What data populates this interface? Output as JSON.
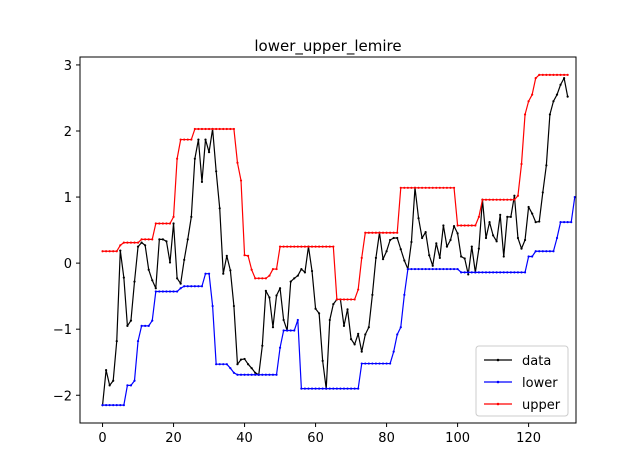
{
  "chart_data": {
    "type": "line",
    "title": "lower_upper_lemire",
    "xlabel": "",
    "ylabel": "",
    "xlim": [
      -6.35,
      133.35
    ],
    "ylim": [
      -2.42,
      3.12
    ],
    "xticks": [
      0,
      20,
      40,
      60,
      80,
      100,
      120
    ],
    "yticks": [
      -2,
      -1,
      0,
      1,
      2,
      3
    ],
    "xtick_labels": [
      "0",
      "20",
      "40",
      "60",
      "80",
      "100",
      "120"
    ],
    "ytick_labels": [
      "−2",
      "−1",
      "0",
      "1",
      "2",
      "3"
    ],
    "grid": false,
    "legend_position": "lower right",
    "series": [
      {
        "name": "data",
        "color": "#000000",
        "values": [
          -2.15,
          -1.62,
          -1.85,
          -1.78,
          -1.18,
          0.19,
          -0.22,
          -0.95,
          -0.87,
          -0.28,
          0.25,
          0.31,
          0.27,
          -0.1,
          -0.26,
          -0.38,
          0.36,
          0.36,
          0.33,
          0.01,
          0.6,
          -0.23,
          -0.31,
          0.05,
          0.36,
          0.7,
          1.58,
          1.87,
          1.23,
          1.87,
          1.68,
          2.03,
          1.39,
          0.83,
          -0.16,
          0.11,
          -0.11,
          -0.65,
          -1.53,
          -1.46,
          -1.45,
          -1.53,
          -1.59,
          -1.66,
          -1.69,
          -1.25,
          -0.42,
          -0.52,
          -0.97,
          -0.49,
          -0.38,
          -0.86,
          -1.02,
          -0.28,
          -0.23,
          -0.19,
          -0.09,
          -0.14,
          0.25,
          -0.12,
          -0.69,
          -0.76,
          -1.48,
          -1.9,
          -0.86,
          -0.62,
          -0.55,
          -0.55,
          -0.95,
          -0.7,
          -1.15,
          -1.23,
          -1.07,
          -1.34,
          -1.08,
          -0.97,
          -0.48,
          0.08,
          0.46,
          0.06,
          0.18,
          0.35,
          0.38,
          0.38,
          0.21,
          0.04,
          -0.09,
          0.32,
          1.14,
          0.68,
          0.38,
          0.47,
          0.12,
          -0.04,
          0.3,
          0.08,
          0.57,
          0.25,
          0.35,
          0.56,
          0.45,
          0.1,
          0.07,
          -0.17,
          0.25,
          -0.14,
          0.22,
          0.96,
          0.38,
          0.62,
          0.42,
          0.33,
          0.73,
          0.1,
          0.7,
          0.7,
          1.02,
          0.38,
          0.22,
          0.35,
          0.85,
          0.75,
          0.62,
          0.63,
          1.07,
          1.48,
          2.25,
          2.45,
          2.55,
          2.7,
          2.8,
          2.52
        ]
      },
      {
        "name": "lower",
        "color": "#0000ff",
        "values": [
          -2.15,
          -2.15,
          -2.15,
          -2.15,
          -2.15,
          -2.15,
          -2.15,
          -1.85,
          -1.85,
          -1.78,
          -1.18,
          -0.95,
          -0.95,
          -0.95,
          -0.87,
          -0.43,
          -0.43,
          -0.43,
          -0.43,
          -0.43,
          -0.43,
          -0.43,
          -0.38,
          -0.35,
          -0.35,
          -0.35,
          -0.35,
          -0.35,
          -0.35,
          -0.16,
          -0.16,
          -0.65,
          -1.53,
          -1.53,
          -1.53,
          -1.53,
          -1.59,
          -1.66,
          -1.69,
          -1.69,
          -1.69,
          -1.69,
          -1.69,
          -1.69,
          -1.69,
          -1.69,
          -1.69,
          -1.69,
          -1.69,
          -1.69,
          -1.28,
          -1.02,
          -1.02,
          -1.02,
          -1.02,
          -0.86,
          -1.9,
          -1.9,
          -1.9,
          -1.9,
          -1.9,
          -1.9,
          -1.9,
          -1.9,
          -1.9,
          -1.9,
          -1.9,
          -1.9,
          -1.9,
          -1.9,
          -1.9,
          -1.9,
          -1.9,
          -1.52,
          -1.52,
          -1.52,
          -1.52,
          -1.52,
          -1.52,
          -1.52,
          -1.52,
          -1.52,
          -1.34,
          -1.08,
          -0.97,
          -0.48,
          -0.09,
          -0.09,
          -0.09,
          -0.09,
          -0.09,
          -0.09,
          -0.09,
          -0.09,
          -0.09,
          -0.09,
          -0.09,
          -0.09,
          -0.09,
          -0.09,
          -0.09,
          -0.14,
          -0.14,
          -0.14,
          -0.14,
          -0.14,
          -0.14,
          -0.14,
          -0.14,
          -0.14,
          -0.14,
          -0.14,
          -0.14,
          -0.14,
          -0.14,
          -0.14,
          -0.14,
          -0.14,
          -0.14,
          -0.14,
          0.1,
          0.1,
          0.18,
          0.18,
          0.18,
          0.18,
          0.18,
          0.18,
          0.38,
          0.62,
          0.62,
          0.62,
          0.62,
          1.0
        ]
      },
      {
        "name": "upper",
        "color": "#ff0000",
        "values": [
          0.18,
          0.18,
          0.18,
          0.18,
          0.18,
          0.27,
          0.31,
          0.31,
          0.31,
          0.31,
          0.31,
          0.36,
          0.36,
          0.36,
          0.36,
          0.6,
          0.6,
          0.6,
          0.6,
          0.6,
          0.7,
          1.58,
          1.87,
          1.87,
          1.87,
          1.87,
          2.03,
          2.03,
          2.03,
          2.03,
          2.03,
          2.03,
          2.03,
          2.03,
          2.03,
          2.03,
          2.03,
          2.03,
          1.52,
          1.25,
          0.12,
          0.11,
          -0.1,
          -0.23,
          -0.23,
          -0.23,
          -0.23,
          -0.19,
          -0.09,
          -0.09,
          0.25,
          0.25,
          0.25,
          0.25,
          0.25,
          0.25,
          0.25,
          0.25,
          0.25,
          0.25,
          0.25,
          0.25,
          0.25,
          0.25,
          0.25,
          0.25,
          -0.55,
          -0.55,
          -0.55,
          -0.55,
          -0.55,
          -0.55,
          -0.4,
          0.08,
          0.46,
          0.46,
          0.46,
          0.46,
          0.46,
          0.46,
          0.46,
          0.46,
          0.46,
          0.46,
          1.14,
          1.14,
          1.14,
          1.14,
          1.14,
          1.14,
          1.14,
          1.14,
          1.14,
          1.14,
          1.14,
          1.14,
          1.14,
          1.14,
          1.14,
          1.14,
          0.57,
          0.57,
          0.57,
          0.57,
          0.57,
          0.57,
          0.7,
          0.96,
          0.96,
          0.96,
          0.96,
          0.96,
          0.96,
          0.96,
          0.96,
          0.96,
          0.96,
          1.02,
          1.5,
          2.25,
          2.45,
          2.55,
          2.8,
          2.85,
          2.85,
          2.85,
          2.85,
          2.85,
          2.85,
          2.85,
          2.85,
          2.85
        ]
      }
    ]
  }
}
